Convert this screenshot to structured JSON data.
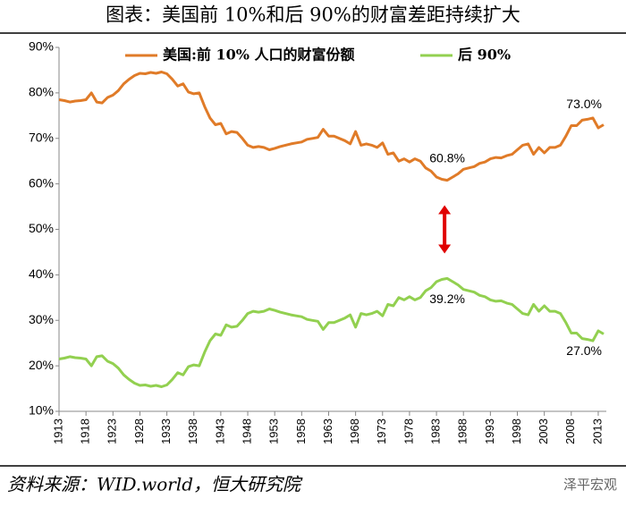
{
  "chart_data": {
    "type": "line",
    "title": "图表：美国前 10%和后 90%的财富差距持续扩大",
    "source": "资料来源：WID.world，恒大研究院",
    "watermark": "泽平宏观",
    "x": [
      1913,
      1914,
      1915,
      1916,
      1917,
      1918,
      1919,
      1920,
      1921,
      1922,
      1923,
      1924,
      1925,
      1926,
      1927,
      1928,
      1929,
      1930,
      1931,
      1932,
      1933,
      1934,
      1935,
      1936,
      1937,
      1938,
      1939,
      1940,
      1941,
      1942,
      1943,
      1944,
      1945,
      1946,
      1947,
      1948,
      1949,
      1950,
      1951,
      1952,
      1953,
      1954,
      1955,
      1956,
      1957,
      1958,
      1959,
      1960,
      1961,
      1962,
      1963,
      1964,
      1965,
      1966,
      1967,
      1968,
      1969,
      1970,
      1971,
      1972,
      1973,
      1974,
      1975,
      1976,
      1977,
      1978,
      1979,
      1980,
      1981,
      1982,
      1983,
      1984,
      1985,
      1986,
      1987,
      1988,
      1989,
      1990,
      1991,
      1992,
      1993,
      1994,
      1995,
      1996,
      1997,
      1998,
      1999,
      2000,
      2001,
      2002,
      2003,
      2004,
      2005,
      2006,
      2007,
      2008,
      2009,
      2010,
      2011,
      2012,
      2013,
      2014
    ],
    "series": [
      {
        "name": "美国:前 10% 人口的财富份额",
        "color": "#e07b28",
        "values": [
          78.5,
          78.3,
          78.0,
          78.2,
          78.3,
          78.5,
          80,
          78,
          77.8,
          79,
          79.5,
          80.5,
          82,
          83,
          83.8,
          84.3,
          84.2,
          84.5,
          84.3,
          84.6,
          84.2,
          83,
          81.5,
          82,
          80.2,
          79.8,
          80,
          77,
          74.5,
          73,
          73.3,
          71,
          71.5,
          71.3,
          70,
          68.5,
          68,
          68.2,
          68,
          67.5,
          67.8,
          68.2,
          68.5,
          68.8,
          69,
          69.2,
          69.8,
          70,
          70.2,
          72,
          70.5,
          70.5,
          70,
          69.5,
          68.8,
          71.5,
          68.5,
          68.8,
          68.5,
          68,
          69,
          66.5,
          66.8,
          65,
          65.5,
          64.8,
          65.5,
          65,
          63.5,
          62.8,
          61.5,
          61,
          60.8,
          61.5,
          62.2,
          63.2,
          63.5,
          63.8,
          64.5,
          64.8,
          65.5,
          65.8,
          65.7,
          66.2,
          66.5,
          67.5,
          68.5,
          68.8,
          66.5,
          68,
          66.8,
          68,
          68,
          68.5,
          70.5,
          72.8,
          72.8,
          74,
          74.2,
          74.5,
          72.3,
          73
        ]
      },
      {
        "name": "后 90%",
        "color": "#92d050",
        "values": [
          21.5,
          21.7,
          22,
          21.8,
          21.7,
          21.5,
          20,
          22,
          22.2,
          21,
          20.5,
          19.5,
          18,
          17,
          16.2,
          15.7,
          15.8,
          15.5,
          15.7,
          15.4,
          15.8,
          17,
          18.5,
          18,
          19.8,
          20.2,
          20,
          23,
          25.5,
          27,
          26.7,
          29,
          28.5,
          28.7,
          30,
          31.5,
          32,
          31.8,
          32,
          32.5,
          32.2,
          31.8,
          31.5,
          31.2,
          31,
          30.8,
          30.2,
          30,
          29.8,
          28,
          29.5,
          29.5,
          30,
          30.5,
          31.2,
          28.5,
          31.5,
          31.2,
          31.5,
          32,
          31,
          33.5,
          33.2,
          35,
          34.5,
          35.2,
          34.5,
          35,
          36.5,
          37.2,
          38.5,
          39,
          39.2,
          38.5,
          37.8,
          36.8,
          36.5,
          36.2,
          35.5,
          35.2,
          34.5,
          34.2,
          34.3,
          33.8,
          33.5,
          32.5,
          31.5,
          31.2,
          33.5,
          32,
          33.2,
          32,
          32,
          31.5,
          29.5,
          27.2,
          27.2,
          26,
          25.8,
          25.5,
          27.7,
          27.0
        ]
      }
    ],
    "annotations": [
      {
        "text": "60.8%",
        "x": 1985,
        "y": 60.8
      },
      {
        "text": "39.2%",
        "x": 1985,
        "y": 39.2
      },
      {
        "text": "73.0%",
        "x": 2014,
        "y": 73.0
      },
      {
        "text": "27.0%",
        "x": 2014,
        "y": 27.0
      }
    ],
    "xlim": [
      1913,
      2014.5
    ],
    "xticks": [
      1913,
      1918,
      1923,
      1928,
      1933,
      1938,
      1943,
      1948,
      1953,
      1958,
      1963,
      1968,
      1973,
      1978,
      1983,
      1988,
      1993,
      1998,
      2003,
      2008,
      2013
    ],
    "ylim": [
      10,
      90
    ],
    "yticks": [
      {
        "value": 10,
        "label": "10%"
      },
      {
        "value": 20,
        "label": "20%"
      },
      {
        "value": 30,
        "label": "30%"
      },
      {
        "value": 40,
        "label": "40%"
      },
      {
        "value": 50,
        "label": "50%"
      },
      {
        "value": 60,
        "label": "60%"
      },
      {
        "value": 70,
        "label": "70%"
      },
      {
        "value": 80,
        "label": "80%"
      },
      {
        "value": 90,
        "label": "90%"
      }
    ],
    "grid": false,
    "legend": "top"
  }
}
